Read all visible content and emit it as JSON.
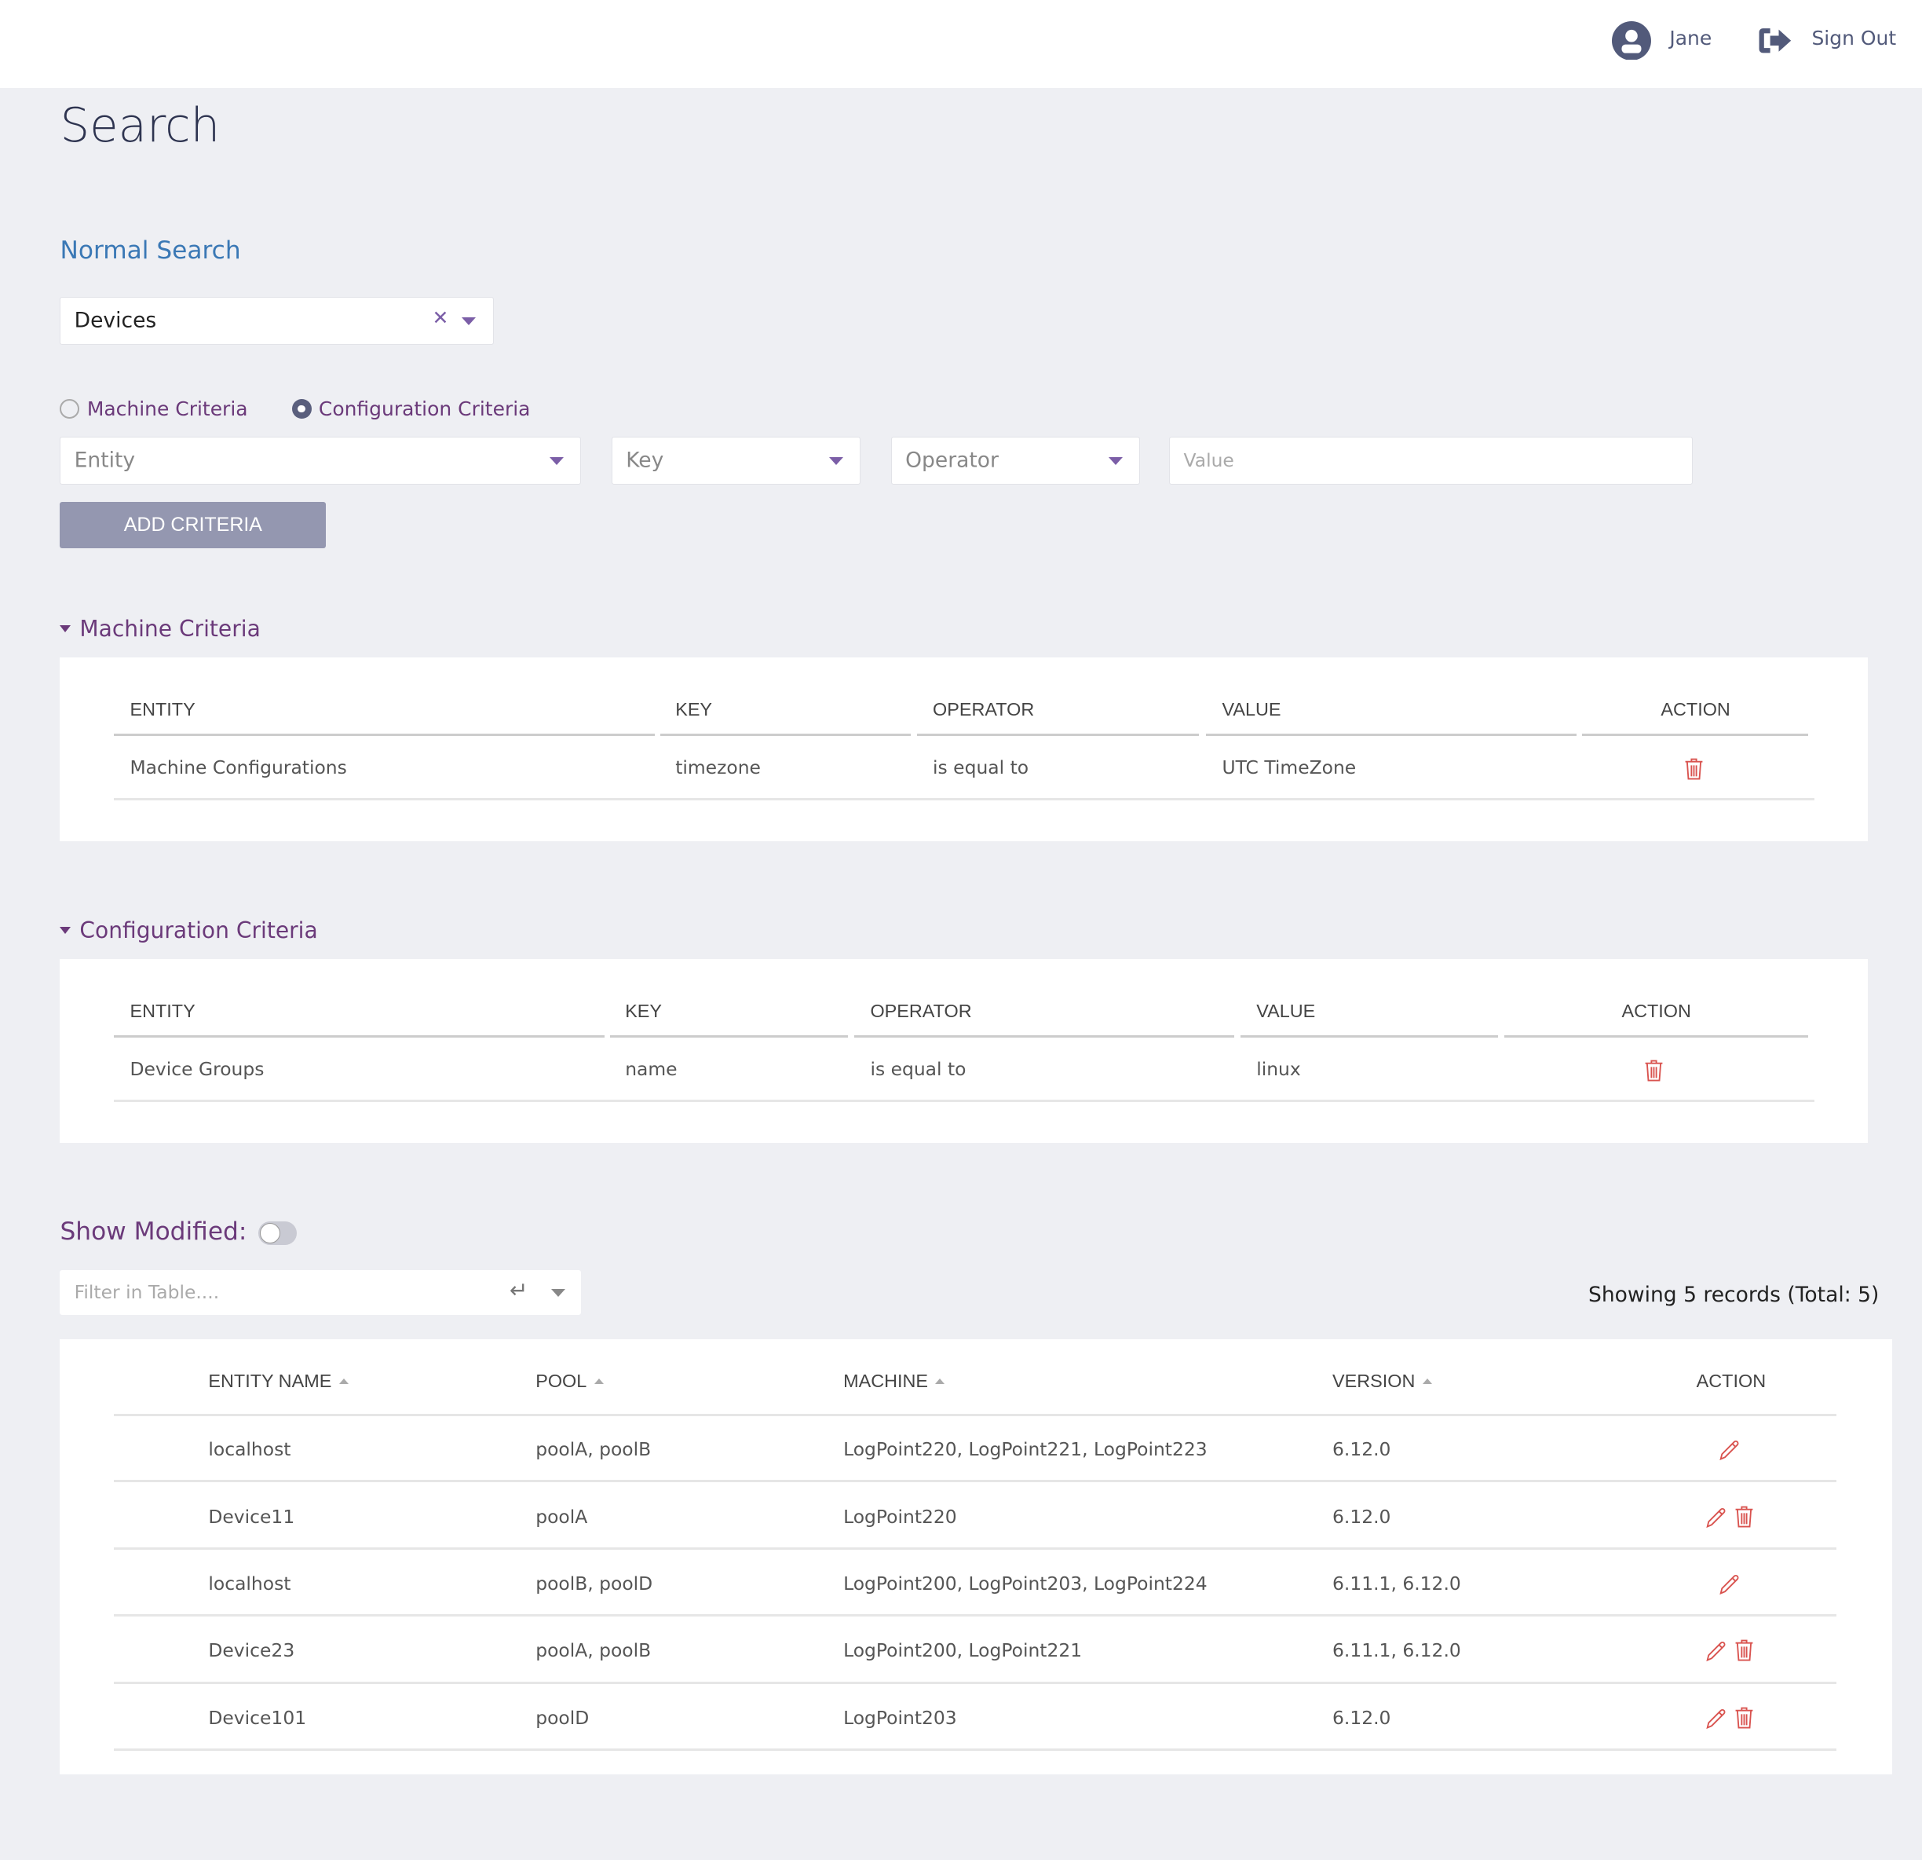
{
  "header": {
    "user": "Jane",
    "sign_out": "Sign Out"
  },
  "page_title": "Search",
  "section_title": "Normal Search",
  "entity_select": {
    "value": "Devices"
  },
  "criteria_type": {
    "options": [
      "Machine Criteria",
      "Configuration Criteria"
    ],
    "selected": "Configuration Criteria"
  },
  "criteria_form": {
    "entity_placeholder": "Entity",
    "key_placeholder": "Key",
    "operator_placeholder": "Operator",
    "value_placeholder": "Value",
    "add_button": "ADD CRITERIA"
  },
  "machine_criteria": {
    "title": "Machine Criteria",
    "headers": [
      "ENTITY",
      "KEY",
      "OPERATOR",
      "VALUE",
      "ACTION"
    ],
    "rows": [
      {
        "entity": "Machine Configurations",
        "key": "timezone",
        "operator": "is equal to",
        "value": "UTC TimeZone"
      }
    ]
  },
  "configuration_criteria": {
    "title": "Configuration Criteria",
    "headers": [
      "ENTITY",
      "KEY",
      "OPERATOR",
      "VALUE",
      "ACTION"
    ],
    "rows": [
      {
        "entity": "Device Groups",
        "key": "name",
        "operator": "is equal to",
        "value": "linux"
      }
    ]
  },
  "show_modified": {
    "label": "Show Modified:",
    "on": false
  },
  "filter": {
    "placeholder": "Filter in Table...."
  },
  "records_text": "Showing 5 records (Total: 5)",
  "results": {
    "headers": [
      "ENTITY NAME",
      "POOL",
      "MACHINE",
      "VERSION",
      "ACTION"
    ],
    "rows": [
      {
        "name": "localhost",
        "pool": "poolA, poolB",
        "machine": "LogPoint220, LogPoint221, LogPoint223",
        "version": "6.12.0",
        "deletable": false
      },
      {
        "name": "Device11",
        "pool": "poolA",
        "machine": "LogPoint220",
        "version": "6.12.0",
        "deletable": true
      },
      {
        "name": "localhost",
        "pool": "poolB, poolD",
        "machine": "LogPoint200, LogPoint203, LogPoint224",
        "version": "6.11.1, 6.12.0",
        "deletable": false
      },
      {
        "name": "Device23",
        "pool": "poolA, poolB",
        "machine": "LogPoint200, LogPoint221",
        "version": "6.11.1, 6.12.0",
        "deletable": true
      },
      {
        "name": "Device101",
        "pool": "poolD",
        "machine": "LogPoint203",
        "version": "6.12.0",
        "deletable": true
      }
    ]
  },
  "colors": {
    "accent_purple": "#6b3a7a",
    "navy": "#525a7a",
    "button": "#9497b0",
    "danger": "#d9534f",
    "link": "#3a78b5"
  }
}
